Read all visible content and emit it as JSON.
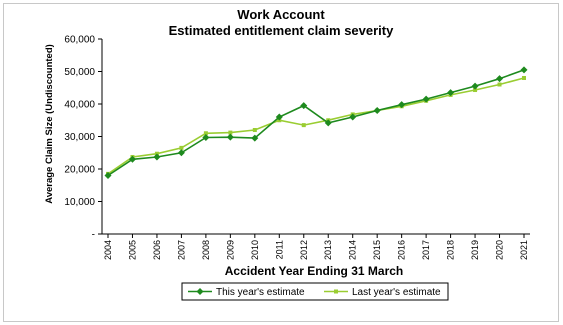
{
  "chart_data": {
    "type": "line",
    "title": "Work Account",
    "subtitle": "Estimated entitlement claim severity",
    "xlabel": "Accident Year Ending 31 March",
    "ylabel": "Average Claim Size (Undiscounted)",
    "ylim": [
      0,
      60000
    ],
    "yticks": [
      "-",
      "10,000",
      "20,000",
      "30,000",
      "40,000",
      "50,000",
      "60,000"
    ],
    "categories": [
      "2004",
      "2005",
      "2006",
      "2007",
      "2008",
      "2009",
      "2010",
      "2011",
      "2012",
      "2013",
      "2014",
      "2015",
      "2016",
      "2017",
      "2018",
      "2019",
      "2020",
      "2021"
    ],
    "series": [
      {
        "name": "This year's estimate",
        "color": "#1e8a1e",
        "marker": "diamond",
        "values": [
          18000,
          23000,
          23700,
          25000,
          29700,
          29800,
          29500,
          36000,
          39500,
          34200,
          36000,
          38000,
          39800,
          41500,
          43500,
          45500,
          47800,
          50500
        ]
      },
      {
        "name": "Last year's estimate",
        "color": "#9acd32",
        "marker": "square",
        "values": [
          18500,
          23700,
          24700,
          26500,
          31000,
          31200,
          32000,
          35000,
          33500,
          35000,
          36800,
          38000,
          39300,
          41000,
          42800,
          44300,
          46000,
          48000
        ]
      }
    ],
    "grid": false,
    "legend_position": "bottom"
  }
}
